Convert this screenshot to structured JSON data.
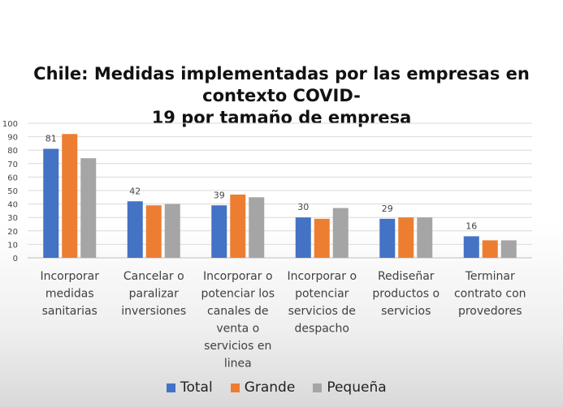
{
  "chart_data": {
    "type": "bar",
    "title_lines": [
      "Chile: Medidas implementadas por las empresas en contexto COVID-",
      "19 por tamaño de empresa"
    ],
    "categories": [
      [
        "Incorporar",
        "medidas",
        "sanitarias"
      ],
      [
        "Cancelar o",
        "paralizar",
        "inversiones"
      ],
      [
        "Incorporar o",
        "potenciar los",
        "canales de",
        "venta o",
        "servicios en",
        "linea"
      ],
      [
        "Incorporar o",
        "potenciar",
        "servicios de",
        "despacho"
      ],
      [
        "Rediseñar",
        "productos o",
        "servicios"
      ],
      [
        "Terminar",
        "contrato con",
        "provedores"
      ]
    ],
    "series": [
      {
        "name": "Total",
        "color": "#4472C4",
        "values": [
          81,
          42,
          39,
          30,
          29,
          16
        ]
      },
      {
        "name": "Grande",
        "color": "#ED7D31",
        "values": [
          92,
          39,
          47,
          29,
          30,
          13
        ]
      },
      {
        "name": "Pequeña",
        "color": "#A5A5A5",
        "values": [
          74,
          40,
          45,
          37,
          30,
          13
        ]
      }
    ],
    "data_labels": [
      "81",
      "42",
      "39",
      "30",
      "29",
      "16"
    ],
    "ylim": [
      0,
      100
    ],
    "yticks": [
      "0",
      "10",
      "20",
      "30",
      "40",
      "50",
      "60",
      "70",
      "80",
      "90",
      "100"
    ],
    "grid": true,
    "legend_position": "bottom"
  }
}
